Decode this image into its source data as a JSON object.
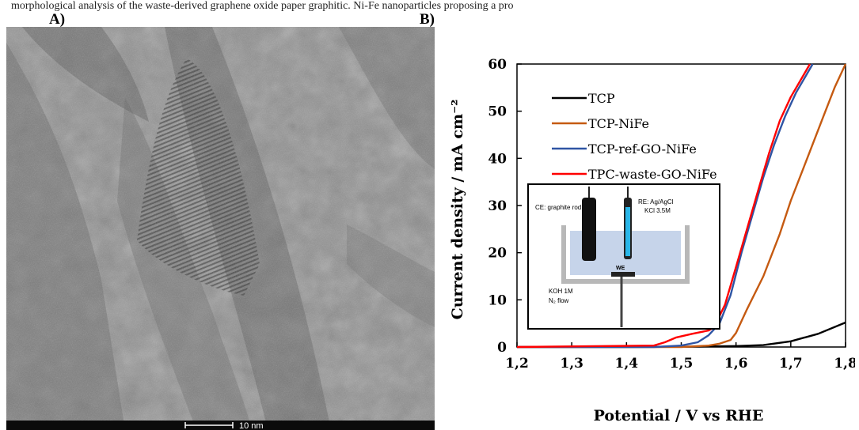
{
  "caption": "morphological analysis of the waste-derived graphene oxide paper graphitic. Ni-Fe nanoparticles proposing a pro",
  "panels": {
    "a_label": "A)",
    "b_label": "B)"
  },
  "micrograph": {
    "scale_bar_label": "10 nm"
  },
  "chart_data": {
    "type": "line",
    "xlabel": "Potential / V vs RHE",
    "ylabel": "Current density / mA cm⁻²",
    "xlim": [
      1.2,
      1.8
    ],
    "ylim": [
      0,
      60
    ],
    "xticks": [
      "1,2",
      "1,3",
      "1,4",
      "1,5",
      "1,6",
      "1,7",
      "1,8"
    ],
    "yticks": [
      "0",
      "10",
      "20",
      "30",
      "40",
      "50",
      "60"
    ],
    "grid": false,
    "legend_position": "top-left",
    "series": [
      {
        "name": "TCP",
        "color": "#000000",
        "points": [
          [
            1.2,
            0
          ],
          [
            1.4,
            0
          ],
          [
            1.5,
            0.05
          ],
          [
            1.6,
            0.2
          ],
          [
            1.65,
            0.4
          ],
          [
            1.7,
            1.2
          ],
          [
            1.75,
            2.8
          ],
          [
            1.8,
            5.2
          ]
        ]
      },
      {
        "name": "TCP-NiFe",
        "color": "#c55a11",
        "points": [
          [
            1.2,
            0
          ],
          [
            1.5,
            0
          ],
          [
            1.55,
            0.3
          ],
          [
            1.57,
            0.7
          ],
          [
            1.59,
            1.5
          ],
          [
            1.6,
            3
          ],
          [
            1.62,
            8
          ],
          [
            1.65,
            15
          ],
          [
            1.68,
            24
          ],
          [
            1.7,
            31
          ],
          [
            1.73,
            40
          ],
          [
            1.76,
            49
          ],
          [
            1.78,
            55
          ],
          [
            1.8,
            60
          ]
        ]
      },
      {
        "name": "TCP-ref-GO-NiFe",
        "color": "#2f55a4",
        "points": [
          [
            1.2,
            0
          ],
          [
            1.45,
            0
          ],
          [
            1.5,
            0.3
          ],
          [
            1.53,
            1
          ],
          [
            1.55,
            2.5
          ],
          [
            1.57,
            5
          ],
          [
            1.59,
            11
          ],
          [
            1.61,
            20
          ],
          [
            1.63,
            28
          ],
          [
            1.65,
            36
          ],
          [
            1.67,
            43
          ],
          [
            1.69,
            49
          ],
          [
            1.71,
            54
          ],
          [
            1.73,
            58
          ],
          [
            1.74,
            60
          ]
        ]
      },
      {
        "name": "TPC-waste-GO-NiFe",
        "color": "#ff0000",
        "points": [
          [
            1.2,
            0
          ],
          [
            1.45,
            0.3
          ],
          [
            1.47,
            1
          ],
          [
            1.49,
            2
          ],
          [
            1.52,
            2.8
          ],
          [
            1.55,
            3.5
          ],
          [
            1.56,
            4.2
          ],
          [
            1.58,
            9
          ],
          [
            1.6,
            17
          ],
          [
            1.62,
            25
          ],
          [
            1.64,
            33
          ],
          [
            1.66,
            41
          ],
          [
            1.68,
            48
          ],
          [
            1.7,
            53
          ],
          [
            1.72,
            57
          ],
          [
            1.735,
            60
          ]
        ]
      }
    ],
    "inset": {
      "ce_label": "CE: graphite rod",
      "re_label_line1": "RE: Ag/AgCl",
      "re_label_line2": "KCl 3.5M",
      "we_label": "WE",
      "electrolyte_line1": "KOH 1M",
      "electrolyte_line2": "N₂ flow"
    }
  }
}
